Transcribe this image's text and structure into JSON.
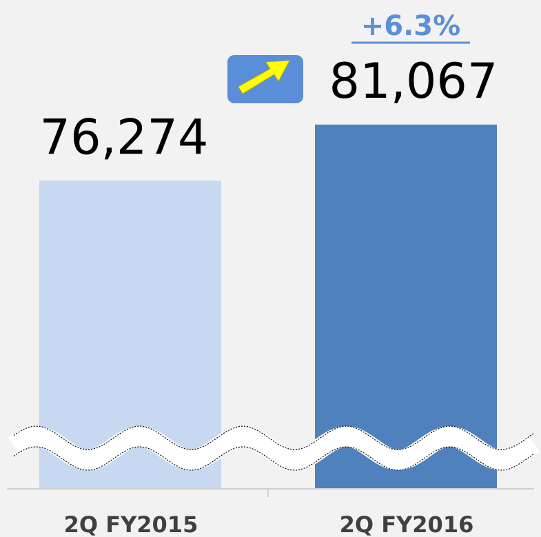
{
  "chart_data": {
    "type": "bar",
    "categories": [
      "2Q FY2015",
      "2Q FY2016"
    ],
    "values": [
      76274,
      81067
    ],
    "value_labels": [
      "76,274",
      "81,067"
    ],
    "colors": [
      "#c6d9f1",
      "#4f81bd"
    ],
    "ylim": [
      50000,
      85000
    ],
    "annotation": "+6.3%"
  }
}
